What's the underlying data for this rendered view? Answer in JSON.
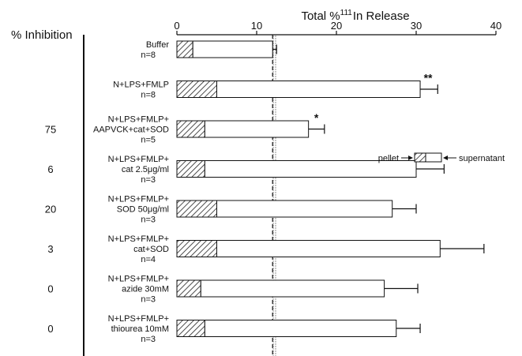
{
  "chart_data": {
    "type": "bar",
    "stacked": true,
    "orientation": "horizontal",
    "title_prefix": "Total %",
    "title_superscript": "111",
    "title_suffix": "In Release",
    "side_header": "% Inhibition",
    "xlim": [
      0,
      40
    ],
    "xticks": [
      0,
      10,
      20,
      30,
      40
    ],
    "reference_line": 12,
    "legend": {
      "pellet_label": "pellet",
      "supernatant_label": "supernatant"
    },
    "series": [
      {
        "name": "pellet",
        "values": [
          2,
          5,
          3.5,
          3.5,
          5,
          5,
          3,
          3.5
        ]
      },
      {
        "name": "supernatant",
        "values": [
          10,
          25.5,
          13,
          26.5,
          22,
          28,
          23,
          24
        ]
      }
    ],
    "totals": [
      12,
      30.5,
      16.5,
      30,
      27,
      33,
      26,
      27.5
    ],
    "errors": [
      0.5,
      2.2,
      2.0,
      3.5,
      3.0,
      5.5,
      4.2,
      3.0
    ],
    "significance": [
      "",
      "**",
      "*",
      "",
      "",
      "",
      "",
      ""
    ],
    "inhibition": [
      "",
      "",
      "75",
      "6",
      "20",
      "3",
      "0",
      "0"
    ],
    "categories": [
      [
        "Buffer",
        "n=8"
      ],
      [
        "N+LPS+FMLP",
        "n=8"
      ],
      [
        "N+LPS+FMLP+",
        "AAPVCK+cat+SOD",
        "n=5"
      ],
      [
        "N+LPS+FMLP+",
        "cat 2.5μg/ml",
        "n=3"
      ],
      [
        "N+LPS+FMLP+",
        "SOD 50μg/ml",
        "n=3"
      ],
      [
        "N+LPS+FMLP+",
        "cat+SOD",
        "n=4"
      ],
      [
        "N+LPS+FMLP+",
        "azide 30mM",
        "n=3"
      ],
      [
        "N+LPS+FMLP+",
        "thiourea 10mM",
        "n=3"
      ]
    ]
  }
}
